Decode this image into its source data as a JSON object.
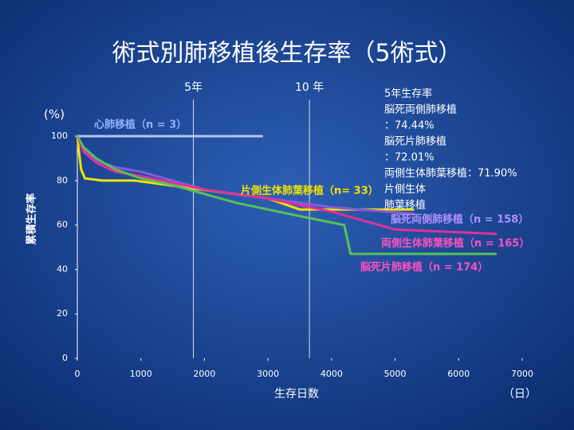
{
  "chart_data": {
    "type": "line",
    "title": "術式別肺移植後生存率（5術式）",
    "y_unit": "(%)",
    "y_label": "累積生存率",
    "x_label": "生存日数",
    "x_unit": "（日）",
    "xlim": [
      0,
      7000
    ],
    "xticks": [
      0,
      1000,
      2000,
      3000,
      4000,
      5000,
      6000,
      7000
    ],
    "ylim": [
      0,
      100
    ],
    "yticks": [
      0,
      20,
      40,
      60,
      80,
      100
    ],
    "reference_lines": [
      {
        "x": 1826,
        "label": "5年"
      },
      {
        "x": 3652,
        "label": "10 年"
      }
    ],
    "series": [
      {
        "name": "心肺移植（n = 3）",
        "color": "#b8c4f0",
        "x": [
          0,
          2920
        ],
        "values": [
          100,
          100
        ]
      },
      {
        "name": "片側生体肺葉移植（n= 33）",
        "color": "#f0e000",
        "x": [
          0,
          30,
          60,
          120,
          400,
          900,
          3000,
          3500,
          5300
        ],
        "values": [
          100,
          92,
          85,
          81,
          80,
          80,
          72,
          67,
          67
        ]
      },
      {
        "name": "脳死両側肺移植（n = 158）",
        "color": "#8a5ad8",
        "x": [
          0,
          100,
          300,
          600,
          1000,
          1500,
          2000,
          3000,
          4000,
          5300
        ],
        "values": [
          100,
          94,
          89,
          86,
          84,
          80,
          76,
          72,
          68,
          65
        ]
      },
      {
        "name": "両側生体肺葉移植（n = 165）",
        "color": "#e0309a",
        "x": [
          0,
          100,
          300,
          600,
          1000,
          1500,
          2000,
          3000,
          4000,
          5000,
          6600
        ],
        "values": [
          100,
          93,
          88,
          84,
          82,
          79,
          76,
          72,
          66,
          58,
          56
        ]
      },
      {
        "name": "脳死片肺移植（n = 174）",
        "color": "#58c058",
        "x": [
          0,
          100,
          300,
          600,
          1000,
          1500,
          2000,
          2500,
          3000,
          3500,
          4200,
          4300,
          6600
        ],
        "values": [
          100,
          95,
          90,
          85,
          81,
          78,
          74,
          70,
          67,
          64,
          60,
          47,
          47
        ]
      }
    ],
    "summary_box": [
      "5年生存率",
      "脳死両側肺移植",
      "：74.44%",
      "脳死片肺移植",
      "：72.01%",
      "両側生体肺葉移植：71.90%",
      "片側生体",
      "肺葉移植"
    ]
  }
}
